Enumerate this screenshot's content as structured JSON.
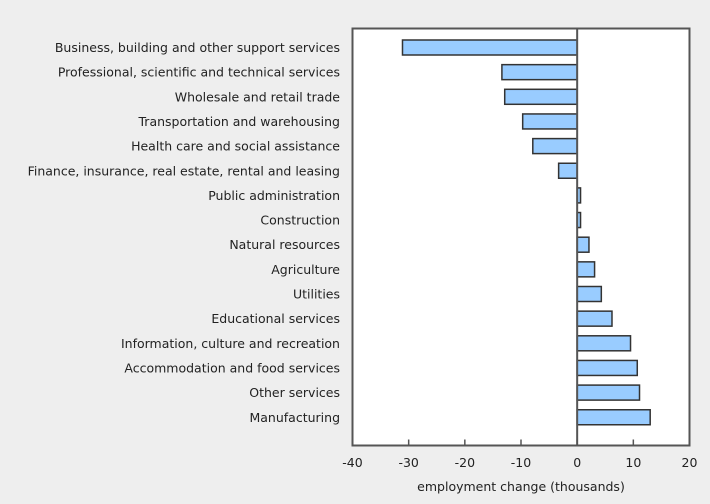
{
  "chart_data": {
    "type": "bar",
    "orientation": "horizontal",
    "title": "",
    "xlabel": "employment change (thousands)",
    "ylabel": "",
    "xlim": [
      -40,
      20
    ],
    "xticks": [
      -40,
      -30,
      -20,
      -10,
      0,
      10,
      20
    ],
    "xtick_labels": [
      "-40",
      "-30",
      "-20",
      "-10",
      "0",
      "10",
      "20"
    ],
    "grid": false,
    "legend": null,
    "bar_color": "#99ccff",
    "bar_edge_color": "#333333",
    "categories": [
      "Business, building and other support services",
      "Professional, scientific and technical services",
      "Wholesale and retail trade",
      "Transportation and warehousing",
      "Health care and social assistance",
      "Finance, insurance, real estate, rental and leasing",
      "Public administration",
      "Construction",
      "Natural resources",
      "Agriculture",
      "Utilities",
      "Educational services",
      "Information, culture and recreation",
      "Accommodation and food services",
      "Other services",
      "Manufacturing"
    ],
    "values": [
      -31.1,
      -13.4,
      -12.9,
      -9.7,
      -7.9,
      -3.3,
      0.6,
      0.6,
      2.1,
      3.1,
      4.3,
      6.2,
      9.5,
      10.7,
      11.1,
      13.0
    ]
  }
}
